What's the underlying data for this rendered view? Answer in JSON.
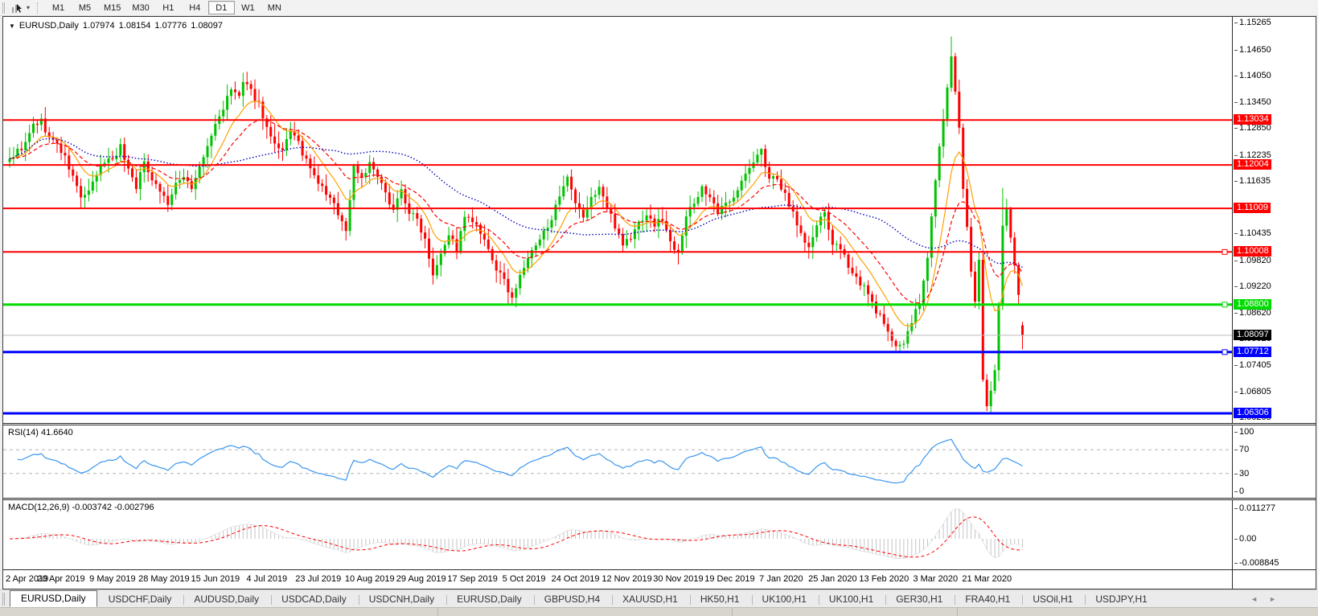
{
  "toolbar": {
    "timeframes": [
      "M1",
      "M5",
      "M15",
      "M30",
      "H1",
      "H4",
      "D1",
      "W1",
      "MN"
    ],
    "active_timeframe": "D1",
    "chart_tool_icon": "chart-cursor-icon",
    "dropdown_caret": "▾"
  },
  "chart": {
    "title": {
      "symbol": "EURUSD,Daily",
      "open": "1.07974",
      "high": "1.08154",
      "low": "1.07776",
      "close": "1.08097"
    },
    "price_labels": [
      {
        "text": "1.13034",
        "bg": "#FF0000",
        "fg": "#FFFFFF",
        "price": 1.13034
      },
      {
        "text": "1.12004",
        "bg": "#FF0000",
        "fg": "#FFFFFF",
        "price": 1.12004
      },
      {
        "text": "1.11009",
        "bg": "#FF0000",
        "fg": "#FFFFFF",
        "price": 1.11009
      },
      {
        "text": "1.10008",
        "bg": "#FF0000",
        "fg": "#FFFFFF",
        "price": 1.10008
      },
      {
        "text": "1.08800",
        "bg": "#00DB00",
        "fg": "#FFFFFF",
        "price": 1.088
      },
      {
        "text": "1.08097",
        "bg": "#000000",
        "fg": "#FFFFFF",
        "price": 1.08097
      },
      {
        "text": "1.07712",
        "bg": "#0000FF",
        "fg": "#FFFFFF",
        "price": 1.07712
      },
      {
        "text": "1.06306",
        "bg": "#0000FF",
        "fg": "#FFFFFF",
        "price": 1.06306
      }
    ]
  },
  "rsi": {
    "label": "RSI(14) 41.6640",
    "name": "RSI",
    "period": 14,
    "value": "41.6640",
    "ticks": [
      {
        "text": "100",
        "v": 100
      },
      {
        "text": "70",
        "v": 70
      },
      {
        "text": "30",
        "v": 30
      },
      {
        "text": "0",
        "v": 0
      }
    ],
    "levels": [
      70,
      30
    ]
  },
  "macd": {
    "label": "MACD(12,26,9) -0.003742 -0.002796",
    "name": "MACD",
    "params": "12,26,9",
    "value": "-0.003742",
    "signal_value": "-0.002796",
    "ticks": [
      {
        "text": "0.011277",
        "v": 0.011277
      },
      {
        "text": "0.00",
        "v": 0.0
      },
      {
        "text": "-0.008845",
        "v": -0.008845
      }
    ]
  },
  "tabs": [
    {
      "label": "EURUSD,Daily",
      "active": true
    },
    {
      "label": "USDCHF,Daily",
      "active": false
    },
    {
      "label": "AUDUSD,Daily",
      "active": false
    },
    {
      "label": "USDCAD,Daily",
      "active": false
    },
    {
      "label": "USDCNH,Daily",
      "active": false
    },
    {
      "label": "EURUSD,Daily",
      "active": false
    },
    {
      "label": "GBPUSD,H4",
      "active": false
    },
    {
      "label": "XAUUSD,H1",
      "active": false
    },
    {
      "label": "HK50,H1",
      "active": false
    },
    {
      "label": "UK100,H1",
      "active": false
    },
    {
      "label": "UK100,H1",
      "active": false
    },
    {
      "label": "GER30,H1",
      "active": false
    },
    {
      "label": "FRA40,H1",
      "active": false
    },
    {
      "label": "USOil,H1",
      "active": false
    },
    {
      "label": "USDJPY,H1",
      "active": false
    }
  ],
  "tab_scroll": {
    "left": "◄",
    "right": "►"
  },
  "chart_data": {
    "type": "candlestick",
    "symbol": "EURUSD",
    "timeframe": "Daily",
    "title": "EURUSD,Daily",
    "last_candle": {
      "open": 1.07974,
      "high": 1.08154,
      "low": 1.07776,
      "close": 1.08097
    },
    "candle_count": 257,
    "price_axis": {
      "min": 1.06085,
      "max": 1.154,
      "ticks": [
        "1.15265",
        "1.14650",
        "1.14050",
        "1.13450",
        "1.12850",
        "1.12235",
        "1.11635",
        "1.11035",
        "1.10435",
        "1.09820",
        "1.09220",
        "1.08620",
        "1.08020",
        "1.07405",
        "1.06805",
        "1.06205"
      ]
    },
    "date_labels": [
      "2 Apr 2019",
      "20 Apr 2019",
      "9 May 2019",
      "28 May 2019",
      "15 Jun 2019",
      "4 Jul 2019",
      "23 Jul 2019",
      "10 Aug 2019",
      "29 Aug 2019",
      "17 Sep 2019",
      "5 Oct 2019",
      "24 Oct 2019",
      "12 Nov 2019",
      "30 Nov 2019",
      "19 Dec 2019",
      "7 Jan 2020",
      "25 Jan 2020",
      "13 Feb 2020",
      "3 Mar 2020",
      "21 Mar 2020"
    ],
    "bars_per_label": 13,
    "horizontal_levels": [
      {
        "price": 1.13034,
        "color": "#FF0000",
        "width": 2,
        "handle": false
      },
      {
        "price": 1.12004,
        "color": "#FF0000",
        "width": 2,
        "handle": false
      },
      {
        "price": 1.11009,
        "color": "#FF0000",
        "width": 2,
        "handle": false
      },
      {
        "price": 1.10008,
        "color": "#FF0000",
        "width": 2,
        "handle": true
      },
      {
        "price": 1.088,
        "color": "#00DB00",
        "width": 3,
        "handle": true
      },
      {
        "price": 1.07712,
        "color": "#0000FF",
        "width": 3,
        "handle": true
      },
      {
        "price": 1.06306,
        "color": "#0000FF",
        "width": 3,
        "handle": false
      }
    ],
    "current_price": 1.08097,
    "close_anchors": [
      [
        0,
        1.1215
      ],
      [
        2,
        1.1232
      ],
      [
        4,
        1.1248
      ],
      [
        6,
        1.1292
      ],
      [
        8,
        1.13
      ],
      [
        10,
        1.1262
      ],
      [
        12,
        1.1248
      ],
      [
        14,
        1.1215
      ],
      [
        16,
        1.1172
      ],
      [
        18,
        1.1128
      ],
      [
        20,
        1.1135
      ],
      [
        22,
        1.1178
      ],
      [
        24,
        1.121
      ],
      [
        26,
        1.1216
      ],
      [
        28,
        1.1242
      ],
      [
        30,
        1.1192
      ],
      [
        32,
        1.1152
      ],
      [
        34,
        1.1205
      ],
      [
        36,
        1.1172
      ],
      [
        38,
        1.1142
      ],
      [
        40,
        1.1112
      ],
      [
        42,
        1.1152
      ],
      [
        44,
        1.1178
      ],
      [
        46,
        1.1148
      ],
      [
        48,
        1.1192
      ],
      [
        50,
        1.1242
      ],
      [
        52,
        1.1292
      ],
      [
        54,
        1.1332
      ],
      [
        56,
        1.1372
      ],
      [
        58,
        1.1358
      ],
      [
        59,
        1.1388
      ],
      [
        61,
        1.1368
      ],
      [
        63,
        1.1342
      ],
      [
        65,
        1.1285
      ],
      [
        67,
        1.1242
      ],
      [
        69,
        1.1228
      ],
      [
        71,
        1.1282
      ],
      [
        73,
        1.1248
      ],
      [
        75,
        1.1208
      ],
      [
        77,
        1.1172
      ],
      [
        79,
        1.1148
      ],
      [
        81,
        1.1122
      ],
      [
        83,
        1.1092
      ],
      [
        85,
        1.1048
      ],
      [
        87,
        1.1198
      ],
      [
        89,
        1.1172
      ],
      [
        91,
        1.1202
      ],
      [
        93,
        1.1172
      ],
      [
        95,
        1.1132
      ],
      [
        97,
        1.1102
      ],
      [
        99,
        1.1142
      ],
      [
        101,
        1.1092
      ],
      [
        103,
        1.1075
      ],
      [
        105,
        1.1032
      ],
      [
        107,
        1.0952
      ],
      [
        109,
        1.1002
      ],
      [
        111,
        1.1042
      ],
      [
        113,
        1.1008
      ],
      [
        115,
        1.1078
      ],
      [
        117,
        1.1071
      ],
      [
        119,
        1.1042
      ],
      [
        121,
        1.1002
      ],
      [
        123,
        1.0962
      ],
      [
        125,
        1.0932
      ],
      [
        127,
        1.0898
      ],
      [
        129,
        1.0942
      ],
      [
        131,
        1.0988
      ],
      [
        133,
        1.1012
      ],
      [
        135,
        1.1045
      ],
      [
        137,
        1.1082
      ],
      [
        139,
        1.1122
      ],
      [
        141,
        1.1168
      ],
      [
        143,
        1.1108
      ],
      [
        145,
        1.1082
      ],
      [
        147,
        1.1122
      ],
      [
        149,
        1.1152
      ],
      [
        151,
        1.1102
      ],
      [
        153,
        1.1062
      ],
      [
        155,
        1.1022
      ],
      [
        157,
        1.1032
      ],
      [
        159,
        1.1068
      ],
      [
        161,
        1.1088
      ],
      [
        163,
        1.1062
      ],
      [
        165,
        1.1078
      ],
      [
        167,
        1.1022
      ],
      [
        169,
        1.1005
      ],
      [
        171,
        1.1082
      ],
      [
        173,
        1.1112
      ],
      [
        175,
        1.1152
      ],
      [
        177,
        1.1122
      ],
      [
        179,
        1.1088
      ],
      [
        181,
        1.1112
      ],
      [
        183,
        1.1132
      ],
      [
        185,
        1.1162
      ],
      [
        187,
        1.1192
      ],
      [
        189,
        1.1222
      ],
      [
        190,
        1.1232
      ],
      [
        192,
        1.1172
      ],
      [
        194,
        1.1162
      ],
      [
        196,
        1.1132
      ],
      [
        198,
        1.1092
      ],
      [
        200,
        1.1042
      ],
      [
        202,
        1.1008
      ],
      [
        204,
        1.1062
      ],
      [
        206,
        1.1088
      ],
      [
        208,
        1.1022
      ],
      [
        210,
        1.1002
      ],
      [
        212,
        1.0972
      ],
      [
        214,
        1.0942
      ],
      [
        216,
        1.0918
      ],
      [
        218,
        1.0882
      ],
      [
        220,
        1.0852
      ],
      [
        222,
        1.0812
      ],
      [
        224,
        1.0792
      ],
      [
        226,
        1.0788
      ],
      [
        228,
        1.0842
      ],
      [
        230,
        1.0882
      ],
      [
        232,
        1.0985
      ],
      [
        234,
        1.1172
      ],
      [
        236,
        1.1305
      ],
      [
        238,
        1.1452
      ],
      [
        239,
        1.1365
      ],
      [
        240,
        1.1282
      ],
      [
        241,
        1.1142
      ],
      [
        242,
        1.1052
      ],
      [
        243,
        1.0952
      ],
      [
        244,
        1.0892
      ],
      [
        245,
        1.0985
      ],
      [
        246,
        1.0715
      ],
      [
        247,
        1.065
      ],
      [
        248,
        1.068
      ],
      [
        249,
        1.0725
      ],
      [
        250,
        1.0885
      ],
      [
        251,
        1.1058
      ],
      [
        252,
        1.1102
      ],
      [
        253,
        1.1032
      ],
      [
        254,
        1.0962
      ],
      [
        255,
        1.0895
      ],
      [
        256,
        1.08097
      ]
    ],
    "extremes": {
      "59": {
        "high": 1.1412
      },
      "85": {
        "low": 1.1027
      },
      "107": {
        "low": 1.0926
      },
      "127": {
        "low": 1.0879
      },
      "141": {
        "high": 1.1179
      },
      "190": {
        "high": 1.1239
      },
      "226": {
        "low": 1.0778
      },
      "238": {
        "high": 1.1495
      },
      "247": {
        "low": 1.0636
      },
      "251": {
        "high": 1.1148
      }
    },
    "moving_averages": [
      {
        "name": "fast",
        "type": "ema",
        "period": 10,
        "color": "#FFA000",
        "style": "solid"
      },
      {
        "name": "medium",
        "type": "ema",
        "period": 21,
        "color": "#FF0000",
        "style": "dashed"
      },
      {
        "name": "slow",
        "type": "sma",
        "period": 50,
        "color": "#0000BB",
        "style": "dotted"
      }
    ],
    "colors": {
      "bull": "#00C300",
      "bear": "#FF0000",
      "background": "#FFFFFF",
      "rsi_line": "#3A96EE",
      "rsi_levels": "#B4B4B4",
      "macd_hist": "#C4C4C4",
      "macd_signal": "#FF0000",
      "current_price_line": "#BBBBBB"
    },
    "rsi_range": [
      0,
      100
    ],
    "macd_range": [
      0.011277,
      -0.008845
    ]
  }
}
